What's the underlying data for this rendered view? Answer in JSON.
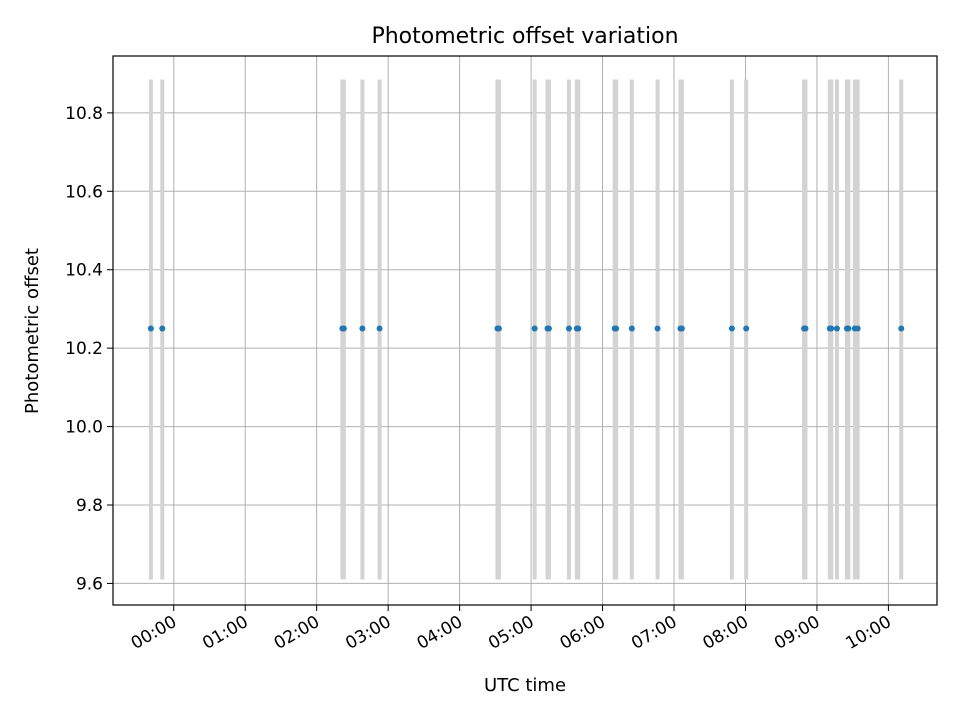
{
  "chart_data": {
    "type": "scatter",
    "title": "Photometric offset variation",
    "xlabel": "UTC time",
    "ylabel": "Photometric offset",
    "x_unit": "hours",
    "xlim": [
      -0.85,
      10.68
    ],
    "ylim": [
      9.545,
      10.945
    ],
    "x_ticks": [
      {
        "value": 0,
        "label": "00:00"
      },
      {
        "value": 1,
        "label": "01:00"
      },
      {
        "value": 2,
        "label": "02:00"
      },
      {
        "value": 3,
        "label": "03:00"
      },
      {
        "value": 4,
        "label": "04:00"
      },
      {
        "value": 5,
        "label": "05:00"
      },
      {
        "value": 6,
        "label": "06:00"
      },
      {
        "value": 7,
        "label": "07:00"
      },
      {
        "value": 8,
        "label": "08:00"
      },
      {
        "value": 9,
        "label": "09:00"
      },
      {
        "value": 10,
        "label": "10:00"
      }
    ],
    "y_ticks": [
      {
        "value": 9.6,
        "label": "9.6"
      },
      {
        "value": 9.8,
        "label": "9.8"
      },
      {
        "value": 10.0,
        "label": "10.0"
      },
      {
        "value": 10.2,
        "label": "10.2"
      },
      {
        "value": 10.4,
        "label": "10.4"
      },
      {
        "value": 10.6,
        "label": "10.6"
      },
      {
        "value": 10.8,
        "label": "10.8"
      }
    ],
    "grid": true,
    "error_low": 9.61,
    "error_high": 10.885,
    "points": [
      {
        "x": -0.32,
        "y": 10.25
      },
      {
        "x": -0.16,
        "y": 10.25
      },
      {
        "x": 2.36,
        "y": 10.25
      },
      {
        "x": 2.38,
        "y": 10.25
      },
      {
        "x": 2.64,
        "y": 10.25
      },
      {
        "x": 2.88,
        "y": 10.25
      },
      {
        "x": 4.53,
        "y": 10.25
      },
      {
        "x": 4.55,
        "y": 10.25
      },
      {
        "x": 5.05,
        "y": 10.25
      },
      {
        "x": 5.23,
        "y": 10.25
      },
      {
        "x": 5.25,
        "y": 10.25
      },
      {
        "x": 5.53,
        "y": 10.25
      },
      {
        "x": 5.64,
        "y": 10.25
      },
      {
        "x": 5.66,
        "y": 10.25
      },
      {
        "x": 6.17,
        "y": 10.25
      },
      {
        "x": 6.19,
        "y": 10.25
      },
      {
        "x": 6.41,
        "y": 10.25
      },
      {
        "x": 6.77,
        "y": 10.25
      },
      {
        "x": 7.09,
        "y": 10.25
      },
      {
        "x": 7.11,
        "y": 10.25
      },
      {
        "x": 7.81,
        "y": 10.25
      },
      {
        "x": 8.01,
        "y": 10.25
      },
      {
        "x": 8.82,
        "y": 10.25
      },
      {
        "x": 8.84,
        "y": 10.25
      },
      {
        "x": 9.18,
        "y": 10.25
      },
      {
        "x": 9.2,
        "y": 10.25
      },
      {
        "x": 9.28,
        "y": 10.25
      },
      {
        "x": 9.42,
        "y": 10.25
      },
      {
        "x": 9.44,
        "y": 10.25
      },
      {
        "x": 9.53,
        "y": 10.25
      },
      {
        "x": 9.57,
        "y": 10.25
      },
      {
        "x": 10.18,
        "y": 10.25
      }
    ],
    "colors": {
      "marker": "#1f77b4",
      "errorbar": "#d3d3d3",
      "grid": "#b0b0b0",
      "axes": "#000000"
    }
  }
}
